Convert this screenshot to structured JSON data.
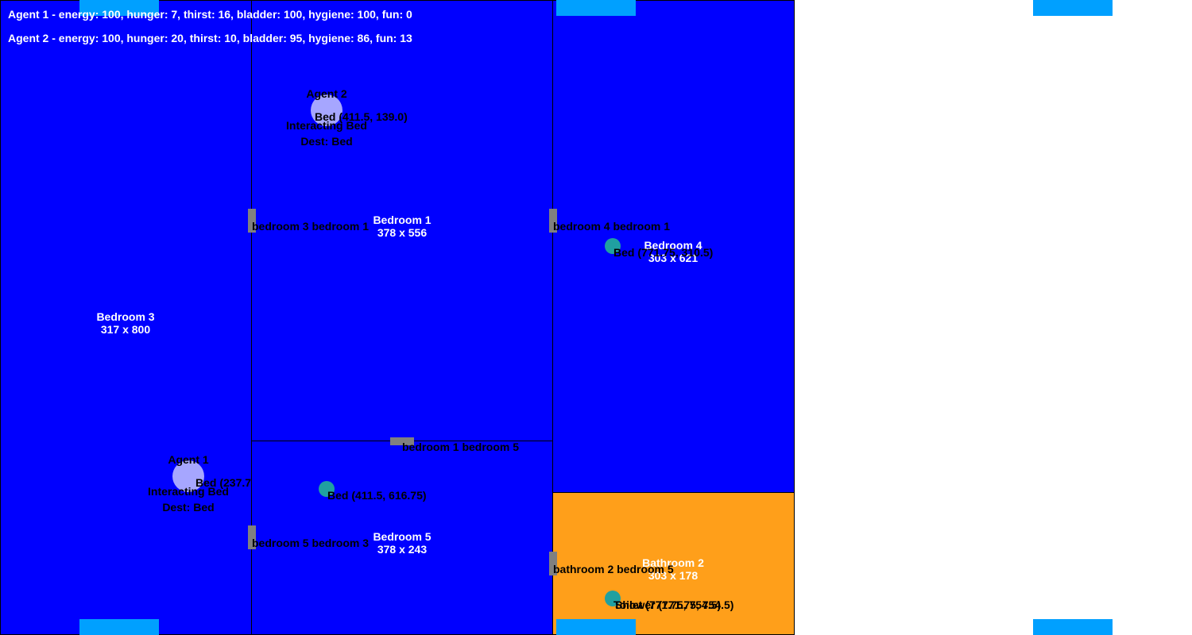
{
  "status": {
    "agent1": "Agent 1 - energy: 100, hunger: 7, thirst: 16, bladder: 100, hygiene: 100, fun: 0",
    "agent2": "Agent 2 - energy: 100, hunger: 20, thirst: 10, bladder: 95, hygiene: 86, fun: 13"
  },
  "rooms": {
    "bedroom3": {
      "name": "Bedroom 3",
      "size": "317 x 800",
      "color": "#0000ff"
    },
    "bedroom1": {
      "name": "Bedroom 1",
      "size": "378 x 556",
      "color": "#0000ff"
    },
    "bedroom5": {
      "name": "Bedroom 5",
      "size": "378 x 243",
      "color": "#0000ff"
    },
    "bedroom4": {
      "name": "Bedroom 4",
      "size": "303 x 621",
      "color": "#0000ff"
    },
    "bathroom2": {
      "name": "Bathroom 2",
      "size": "303 x 178",
      "color": "#ff9f1a"
    }
  },
  "doors": {
    "d31": "bedroom 3 bedroom 1",
    "d41": "bedroom 4 bedroom 1",
    "d15": "bedroom 1 bedroom 5",
    "d53": "bedroom 5 bedroom 3",
    "db25": "bathroom 2 bedroom 5"
  },
  "objects": {
    "bed_b1": "Bed (411.5, 139.0)",
    "bed_b4": "Bed (771.75, 310.5)",
    "bed_b5": "Bed (411.5, 616.75)",
    "bed_b3": "Bed (237.7",
    "toilet": "Toilet (771.75, 754.5)",
    "shower": "Shower (771.75, 754.5)"
  },
  "agents": {
    "agent1": {
      "name": "Agent 1",
      "state": "Interacting Bed",
      "dest": "Dest: Bed"
    },
    "agent2": {
      "name": "Agent 2",
      "state": "Interacting Bed",
      "dest": "Dest: Bed"
    }
  },
  "colors": {
    "window": "#00a0ff",
    "door": "#808080",
    "object": "#20a0a0",
    "agent": "#a6a6ff"
  }
}
